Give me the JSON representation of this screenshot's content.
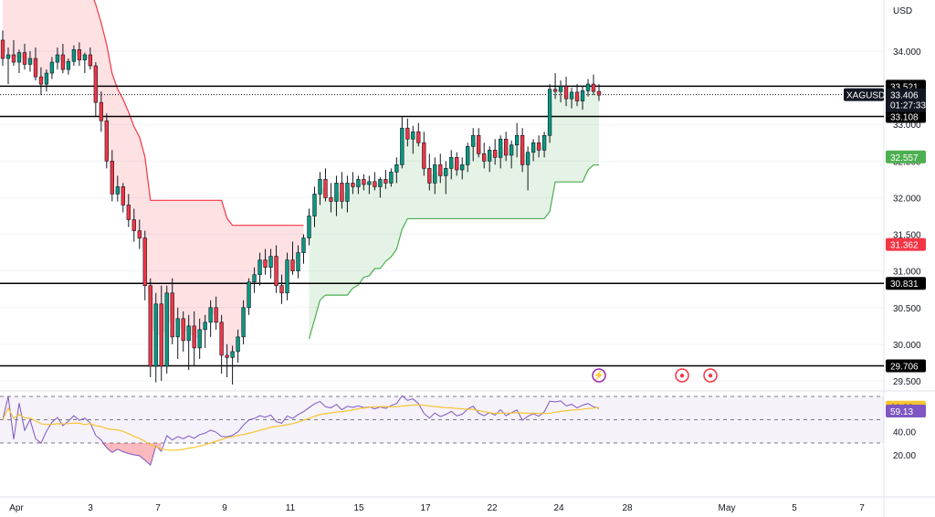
{
  "chart_data": {
    "type": "candlestick",
    "symbol": "XAGUSD",
    "currency": "USD",
    "price_axis": {
      "ticks": [
        "34.000",
        "33.000",
        "32.500",
        "32.000",
        "31.500",
        "31.000",
        "30.500",
        "30.000",
        "29.500"
      ],
      "tick_values": [
        34.0,
        33.0,
        32.5,
        32.0,
        31.5,
        31.0,
        30.5,
        30.0,
        29.5
      ],
      "range": [
        29.3,
        34.8
      ]
    },
    "x_axis": {
      "ticks": [
        "Apr",
        "3",
        "7",
        "9",
        "11",
        "15",
        "17",
        "22",
        "24",
        "28",
        "May",
        "5",
        "7"
      ]
    },
    "price_labels": {
      "current": {
        "symbol": "XAGUSD",
        "price": "33.406",
        "countdown": "01:27:33"
      },
      "levels": [
        {
          "text": "33.521",
          "value": 33.521,
          "color": "#000000"
        },
        {
          "text": "33.108",
          "value": 33.108,
          "color": "#000000"
        },
        {
          "text": "32.557",
          "value": 32.557,
          "color": "#4caf50"
        },
        {
          "text": "31.362",
          "value": 31.362,
          "color": "#f23645"
        },
        {
          "text": "30.831",
          "value": 30.831,
          "color": "#000000"
        },
        {
          "text": "29.706",
          "value": 29.706,
          "color": "#000000"
        }
      ]
    },
    "horizontal_lines": [
      33.521,
      33.108,
      30.831,
      29.706
    ],
    "supertrend": {
      "up_color": "#4caf50",
      "down_color": "#f23645"
    },
    "rsi": {
      "ticks": [
        "60.00",
        "40.00",
        "20.00"
      ],
      "tick_values": [
        60,
        40,
        20
      ],
      "range": [
        5,
        75
      ],
      "value_label": "59.13",
      "ma_label": "60.83",
      "upper_band": 70,
      "mid": 50,
      "lower_band": 30,
      "line_color": "#7e57c2",
      "ma_color": "#f7c431"
    },
    "colors": {
      "up": "#089981",
      "down": "#f23645",
      "wick": "#131722"
    },
    "candles": [
      [
        34.15,
        34.28,
        33.8,
        33.9
      ],
      [
        33.9,
        34.05,
        33.55,
        33.95
      ],
      [
        33.95,
        34.15,
        33.8,
        33.85
      ],
      [
        33.85,
        34.02,
        33.7,
        33.98
      ],
      [
        33.98,
        34.1,
        33.75,
        33.82
      ],
      [
        33.82,
        34.0,
        33.72,
        33.9
      ],
      [
        33.9,
        34.05,
        33.6,
        33.65
      ],
      [
        33.65,
        33.78,
        33.4,
        33.55
      ],
      [
        33.55,
        33.75,
        33.45,
        33.7
      ],
      [
        33.7,
        33.92,
        33.62,
        33.85
      ],
      [
        33.85,
        34.05,
        33.75,
        33.95
      ],
      [
        33.95,
        34.1,
        33.7,
        33.75
      ],
      [
        33.75,
        33.9,
        33.68,
        33.86
      ],
      [
        33.86,
        34.08,
        33.8,
        34.02
      ],
      [
        34.02,
        34.12,
        33.8,
        33.88
      ],
      [
        33.88,
        33.98,
        33.7,
        33.95
      ],
      [
        33.95,
        34.05,
        33.75,
        33.8
      ],
      [
        33.8,
        33.85,
        33.1,
        33.3
      ],
      [
        33.3,
        33.45,
        32.9,
        33.05
      ],
      [
        33.05,
        33.15,
        32.4,
        32.5
      ],
      [
        32.5,
        32.65,
        31.95,
        32.05
      ],
      [
        32.05,
        32.3,
        31.95,
        32.15
      ],
      [
        32.15,
        32.2,
        31.8,
        31.9
      ],
      [
        31.9,
        32.05,
        31.6,
        31.7
      ],
      [
        31.7,
        31.85,
        31.4,
        31.55
      ],
      [
        31.55,
        31.7,
        31.3,
        31.45
      ],
      [
        31.45,
        31.55,
        30.6,
        30.8
      ],
      [
        30.8,
        30.9,
        29.55,
        29.7
      ],
      [
        29.7,
        30.7,
        29.48,
        30.55
      ],
      [
        30.55,
        30.8,
        29.5,
        29.7
      ],
      [
        29.7,
        30.8,
        29.6,
        30.7
      ],
      [
        30.7,
        30.9,
        30.0,
        30.1
      ],
      [
        30.1,
        30.5,
        29.8,
        30.35
      ],
      [
        30.35,
        30.45,
        29.9,
        30.05
      ],
      [
        30.05,
        30.4,
        29.65,
        30.25
      ],
      [
        30.25,
        30.45,
        29.7,
        29.95
      ],
      [
        29.95,
        30.35,
        29.8,
        30.2
      ],
      [
        30.2,
        30.4,
        29.95,
        30.3
      ],
      [
        30.3,
        30.6,
        30.1,
        30.5
      ],
      [
        30.5,
        30.65,
        30.2,
        30.3
      ],
      [
        30.3,
        30.4,
        29.6,
        29.85
      ],
      [
        29.85,
        30.0,
        29.55,
        29.82
      ],
      [
        29.82,
        29.98,
        29.45,
        29.9
      ],
      [
        29.9,
        30.2,
        29.75,
        30.1
      ],
      [
        30.1,
        30.6,
        30.0,
        30.5
      ],
      [
        30.5,
        30.9,
        30.4,
        30.85
      ],
      [
        30.85,
        31.05,
        30.7,
        30.95
      ],
      [
        30.95,
        31.25,
        30.8,
        31.15
      ],
      [
        31.15,
        31.3,
        30.95,
        31.05
      ],
      [
        31.05,
        31.3,
        30.9,
        31.2
      ],
      [
        31.2,
        31.35,
        30.7,
        30.8
      ],
      [
        30.8,
        30.95,
        30.55,
        30.7
      ],
      [
        30.7,
        31.25,
        30.6,
        31.15
      ],
      [
        31.15,
        31.4,
        30.95,
        31.0
      ],
      [
        31.0,
        31.35,
        30.9,
        31.25
      ],
      [
        31.25,
        31.5,
        31.1,
        31.45
      ],
      [
        31.45,
        31.85,
        31.35,
        31.75
      ],
      [
        31.75,
        32.15,
        31.6,
        32.05
      ],
      [
        32.05,
        32.35,
        31.9,
        32.25
      ],
      [
        32.25,
        32.4,
        31.95,
        32.0
      ],
      [
        32.0,
        32.2,
        31.8,
        31.95
      ],
      [
        31.95,
        32.3,
        31.75,
        32.2
      ],
      [
        32.2,
        32.35,
        31.85,
        31.95
      ],
      [
        31.95,
        32.3,
        31.8,
        32.2
      ],
      [
        32.2,
        32.35,
        32.05,
        32.15
      ],
      [
        32.15,
        32.3,
        32.05,
        32.25
      ],
      [
        32.25,
        32.32,
        32.1,
        32.18
      ],
      [
        32.18,
        32.3,
        32.05,
        32.22
      ],
      [
        32.22,
        32.35,
        32.1,
        32.15
      ],
      [
        32.15,
        32.28,
        32.0,
        32.25
      ],
      [
        32.25,
        32.38,
        32.12,
        32.2
      ],
      [
        32.2,
        32.4,
        32.15,
        32.35
      ],
      [
        32.35,
        32.55,
        32.2,
        32.45
      ],
      [
        32.45,
        33.1,
        32.4,
        32.95
      ],
      [
        32.95,
        33.08,
        32.7,
        32.8
      ],
      [
        32.8,
        32.98,
        32.6,
        32.9
      ],
      [
        32.9,
        33.02,
        32.7,
        32.75
      ],
      [
        32.75,
        32.9,
        32.3,
        32.4
      ],
      [
        32.4,
        32.6,
        32.1,
        32.2
      ],
      [
        32.2,
        32.55,
        32.05,
        32.45
      ],
      [
        32.45,
        32.6,
        32.2,
        32.3
      ],
      [
        32.3,
        32.5,
        32.05,
        32.4
      ],
      [
        32.4,
        32.65,
        32.25,
        32.55
      ],
      [
        32.55,
        32.62,
        32.3,
        32.38
      ],
      [
        32.38,
        32.55,
        32.25,
        32.45
      ],
      [
        32.45,
        32.75,
        32.35,
        32.7
      ],
      [
        32.7,
        32.95,
        32.5,
        32.85
      ],
      [
        32.85,
        32.95,
        32.55,
        32.6
      ],
      [
        32.6,
        32.75,
        32.4,
        32.5
      ],
      [
        32.5,
        32.7,
        32.35,
        32.65
      ],
      [
        32.65,
        32.8,
        32.45,
        32.55
      ],
      [
        32.55,
        32.85,
        32.4,
        32.8
      ],
      [
        32.8,
        32.9,
        32.5,
        32.58
      ],
      [
        32.58,
        32.78,
        32.4,
        32.72
      ],
      [
        32.72,
        33.02,
        32.55,
        32.85
      ],
      [
        32.85,
        32.95,
        32.35,
        32.45
      ],
      [
        32.45,
        32.7,
        32.1,
        32.62
      ],
      [
        32.62,
        32.8,
        32.5,
        32.75
      ],
      [
        32.75,
        32.85,
        32.55,
        32.65
      ],
      [
        32.65,
        32.9,
        32.55,
        32.85
      ],
      [
        32.85,
        33.55,
        32.75,
        33.48
      ],
      [
        33.48,
        33.7,
        33.35,
        33.45
      ],
      [
        33.45,
        33.6,
        33.3,
        33.52
      ],
      [
        33.52,
        33.65,
        33.25,
        33.35
      ],
      [
        33.35,
        33.5,
        33.22,
        33.44
      ],
      [
        33.44,
        33.55,
        33.25,
        33.32
      ],
      [
        33.32,
        33.52,
        33.2,
        33.46
      ],
      [
        33.46,
        33.62,
        33.38,
        33.55
      ],
      [
        33.55,
        33.68,
        33.4,
        33.45
      ],
      [
        33.45,
        33.55,
        33.32,
        33.4
      ]
    ]
  }
}
